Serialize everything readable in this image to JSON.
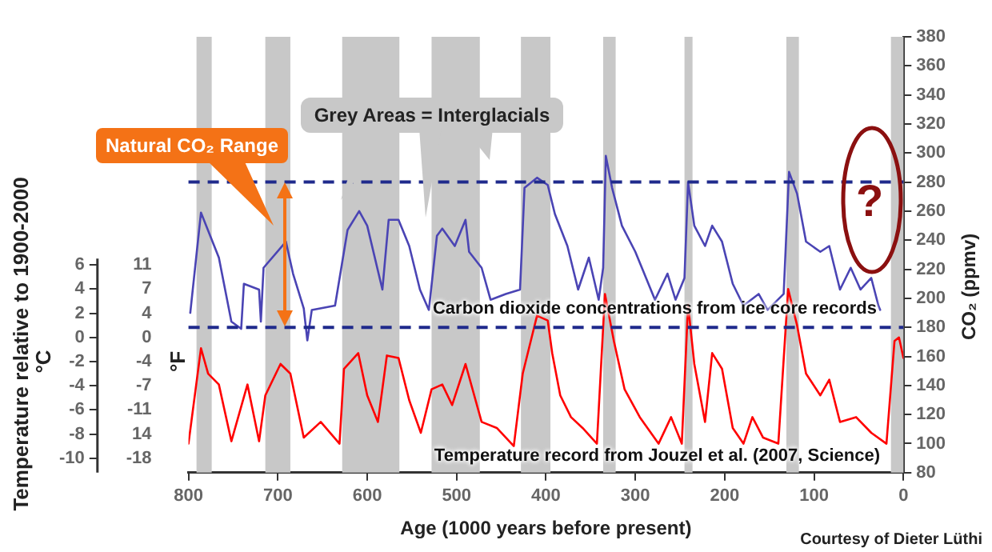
{
  "chart_data": {
    "type": "line",
    "xlabel": "Age (1000 years before present)",
    "ylabel": "°C",
    "y3label": "°F",
    "y2label": "CO₂ (ppmv)",
    "annotations": [
      "Grey Areas = Interglacials",
      "Natural CO₂ Range",
      "Carbon dioxide concentrations from ice core records",
      "Temperature record from Jouzel et al. (2007, Science)",
      "?",
      "Temperature relative to 1900-2000",
      "Courtesy of Dieter Lüthi"
    ],
    "xlim": [
      800,
      0
    ],
    "xticks": [
      800,
      700,
      600,
      500,
      400,
      300,
      200,
      100,
      0
    ],
    "ylim": [
      -11.2,
      24.9
    ],
    "yticks": [
      -10,
      -8,
      -6,
      -4,
      -2,
      0,
      2,
      4,
      6
    ],
    "y3lim": [
      -20.16,
      44.82
    ],
    "y3ticks": [
      {
        "value": 10.8,
        "label": "11"
      },
      {
        "value": 7.2,
        "label": "7"
      },
      {
        "value": 3.6,
        "label": "4"
      },
      0,
      {
        "value": -3.6,
        "label": "-4"
      },
      {
        "value": -7.2,
        "label": "-7"
      },
      {
        "value": -10.8,
        "label": "-11"
      },
      {
        "value": -14.4,
        "label": "14"
      },
      -18
    ],
    "y2lim": [
      80,
      380
    ],
    "y2ticks": [
      80,
      100,
      120,
      140,
      160,
      180,
      200,
      220,
      240,
      260,
      280,
      300,
      320,
      340,
      360,
      380
    ],
    "grid": false,
    "legend": false,
    "bands": [
      {
        "axis": "x",
        "from": 791,
        "to": 774,
        "color": "#c8c8c8"
      },
      {
        "axis": "x",
        "from": 714,
        "to": 686,
        "color": "#c8c8c8"
      },
      {
        "axis": "x",
        "from": 628,
        "to": 564,
        "color": "#c8c8c8"
      },
      {
        "axis": "x",
        "from": 528,
        "to": 474,
        "color": "#c8c8c8"
      },
      {
        "axis": "x",
        "from": 428,
        "to": 395,
        "color": "#c8c8c8"
      },
      {
        "axis": "x",
        "from": 336,
        "to": 322,
        "color": "#c8c8c8"
      },
      {
        "axis": "x",
        "from": 245,
        "to": 236,
        "color": "#c8c8c8"
      },
      {
        "axis": "x",
        "from": 131,
        "to": 117,
        "color": "#c8c8c8"
      },
      {
        "axis": "x",
        "from": 14,
        "to": 0,
        "color": "#c8c8c8"
      }
    ],
    "ref_lines": [
      {
        "axis": "y2",
        "value": 280,
        "color": "#1f2a8c",
        "line_style": "dashed"
      },
      {
        "axis": "y2",
        "value": 180,
        "color": "#1f2a8c",
        "line_style": "dashed"
      }
    ],
    "series": [
      {
        "color": "#4a44b4",
        "axis": "y2",
        "x": [
          798,
          786,
          766,
          752,
          741,
          738,
          721,
          719,
          716,
          691,
          683,
          671,
          667,
          662,
          636,
          622,
          609,
          600,
          583,
          576,
          565,
          553,
          541,
          531,
          522,
          516,
          502,
          490,
          486,
          472,
          462,
          445,
          429,
          424,
          410,
          398,
          390,
          376,
          364,
          352,
          341,
          336,
          333,
          326,
          315,
          300,
          290,
          278,
          264,
          255,
          245,
          241,
          234,
          222,
          214,
          203,
          191,
          179,
          162,
          152,
          134,
          128,
          119,
          109,
          93,
          83,
          71,
          59,
          48,
          36,
          28,
          26
        ],
        "values": [
          190,
          259,
          228,
          184,
          179,
          210,
          206,
          184,
          221,
          239,
          217,
          193,
          171,
          192,
          195,
          247,
          260,
          250,
          206,
          254,
          254,
          236,
          206,
          192,
          243,
          248,
          236,
          254,
          232,
          221,
          199,
          203,
          206,
          276,
          283,
          278,
          258,
          236,
          206,
          228,
          199,
          221,
          298,
          276,
          250,
          232,
          217,
          199,
          217,
          199,
          214,
          280,
          250,
          236,
          250,
          239,
          210,
          195,
          203,
          192,
          203,
          287,
          272,
          239,
          232,
          236,
          206,
          221,
          206,
          214,
          195,
          192
        ]
      },
      {
        "color": "#ff0000",
        "axis": "y",
        "x": [
          800,
          786,
          778,
          766,
          752,
          734,
          721,
          714,
          697,
          686,
          671,
          652,
          631,
          626,
          610,
          600,
          588,
          578,
          565,
          553,
          540,
          528,
          516,
          505,
          490,
          472,
          455,
          436,
          426,
          416,
          410,
          398,
          393,
          384,
          372,
          359,
          343,
          334,
          324,
          312,
          295,
          274,
          260,
          248,
          241,
          234,
          222,
          214,
          203,
          191,
          179,
          169,
          157,
          140,
          129,
          119,
          109,
          93,
          83,
          71,
          53,
          36,
          19,
          10,
          5,
          0
        ],
        "values": [
          -8.8,
          -0.9,
          -3.0,
          -3.9,
          -8.6,
          -3.9,
          -8.6,
          -4.8,
          -2.2,
          -3.0,
          -8.3,
          -7.0,
          -8.8,
          -2.6,
          -1.3,
          -4.8,
          -7.0,
          -1.5,
          -1.7,
          -5.2,
          -7.9,
          -4.3,
          -3.9,
          -5.6,
          -2.2,
          -7.0,
          -7.5,
          -9.0,
          -3.0,
          0,
          1.8,
          1.4,
          -1.3,
          -4.8,
          -6.6,
          -7.5,
          -8.8,
          3.6,
          -0.3,
          -4.3,
          -6.6,
          -8.8,
          -6.6,
          -8.8,
          2.7,
          -2.2,
          -7.0,
          -1.3,
          -2.6,
          -7.5,
          -8.8,
          -6.6,
          -8.3,
          -8.8,
          4.0,
          1.0,
          -3.0,
          -4.8,
          -3.5,
          -7.0,
          -6.6,
          -7.9,
          -8.8,
          -0.3,
          0,
          -1.7
        ]
      }
    ]
  }
}
